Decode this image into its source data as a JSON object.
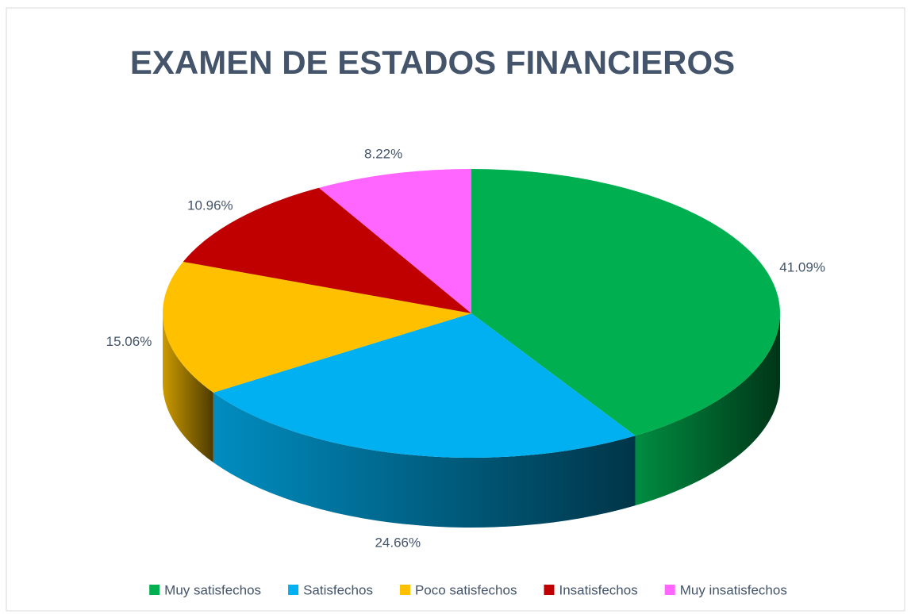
{
  "chart_data": {
    "type": "pie3d",
    "title": "EXAMEN DE ESTADOS FINANCIEROS",
    "categories": [
      "Muy satisfechos",
      "Satisfechos",
      "Poco satisfechos",
      "Insatisfechos",
      "Muy insatisfechos"
    ],
    "values": [
      41.09,
      24.66,
      15.06,
      10.96,
      8.22
    ],
    "value_labels": [
      "41.09%",
      "24.66%",
      "15.06%",
      "10.96%",
      "8.22%"
    ],
    "colors": [
      "#00b050",
      "#00b0f0",
      "#ffc000",
      "#c00000",
      "#ff66ff"
    ],
    "legend": "bottom"
  }
}
